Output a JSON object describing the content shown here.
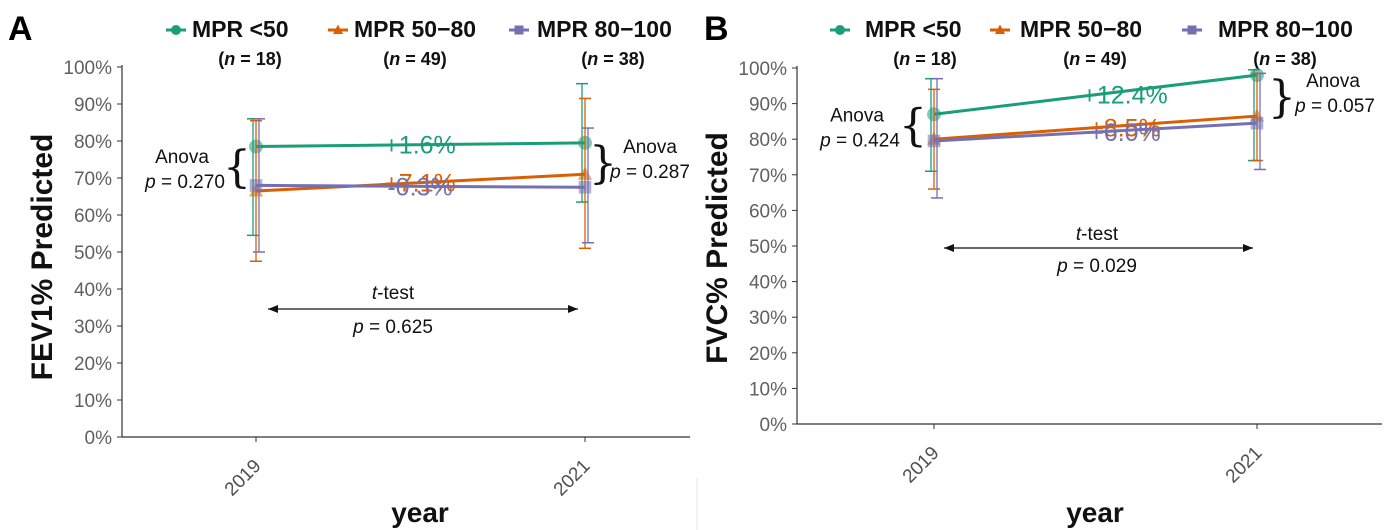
{
  "colors": {
    "mpr_lt_50": "#1b9e77",
    "mpr_50_80": "#d95f02",
    "mpr_80_100": "#7570b3",
    "axis": "#333333",
    "tick_text": "#606060"
  },
  "legend": {
    "items": [
      {
        "label": "MPR <50",
        "n": "(n = 18)",
        "marker": "circle"
      },
      {
        "label": "MPR 50−80",
        "n": "(n = 49)",
        "marker": "triangle"
      },
      {
        "label": "MPR 80−100",
        "n": "(n = 38)",
        "marker": "square"
      }
    ]
  },
  "chart_data": [
    {
      "panel": "A",
      "type": "line",
      "ylabel": "FEV1% Predicted",
      "xlabel": "year",
      "categories": [
        "2019",
        "2021"
      ],
      "ylim": [
        0,
        100
      ],
      "yticks": [
        "0%",
        "10%",
        "20%",
        "30%",
        "40%",
        "50%",
        "60%",
        "70%",
        "80%",
        "90%",
        "100%"
      ],
      "grid": false,
      "series": [
        {
          "name": "MPR <50",
          "values": [
            78.5,
            79.5
          ],
          "error_low": [
            54.5,
            63.5
          ],
          "error_high": [
            86,
            95.5
          ],
          "change_label": "+1.6%"
        },
        {
          "name": "MPR 50−80",
          "values": [
            66.5,
            71
          ],
          "error_low": [
            47.5,
            51
          ],
          "error_high": [
            85.5,
            91.5
          ],
          "change_label": "+7.1%"
        },
        {
          "name": "MPR 80−100",
          "values": [
            68,
            67.5
          ],
          "error_low": [
            50,
            52.5
          ],
          "error_high": [
            86,
            83.5
          ],
          "change_label": "-0.3%"
        }
      ],
      "annotations": {
        "anova_left": {
          "label": "Anova",
          "p": "0.270"
        },
        "anova_right": {
          "label": "Anova",
          "p": "0.287"
        },
        "ttest": {
          "label": "t",
          "suffix": "-test",
          "p": "0.625"
        }
      }
    },
    {
      "panel": "B",
      "type": "line",
      "ylabel": "FVC% Predicted",
      "xlabel": "year",
      "categories": [
        "2019",
        "2021"
      ],
      "ylim": [
        0,
        100
      ],
      "yticks": [
        "0%",
        "10%",
        "20%",
        "30%",
        "40%",
        "50%",
        "60%",
        "70%",
        "80%",
        "90%",
        "100%"
      ],
      "grid": false,
      "series": [
        {
          "name": "MPR <50",
          "values": [
            87,
            98
          ],
          "error_low": [
            71,
            74
          ],
          "error_high": [
            97,
            99.5
          ],
          "change_label": "+12.4%"
        },
        {
          "name": "MPR 50−80",
          "values": [
            80,
            86.5
          ],
          "error_low": [
            66,
            74
          ],
          "error_high": [
            94,
            98.5
          ],
          "change_label": "+8.5%"
        },
        {
          "name": "MPR 80−100",
          "values": [
            79.5,
            84.5
          ],
          "error_low": [
            63.5,
            71.5
          ],
          "error_high": [
            97,
            98.5
          ],
          "change_label": "+6.0%"
        }
      ],
      "annotations": {
        "anova_left": {
          "label": "Anova",
          "p": "0.424"
        },
        "anova_right": {
          "label": "Anova",
          "p": "0.057"
        },
        "ttest": {
          "label": "t",
          "suffix": "-test",
          "p": "0.029"
        }
      }
    }
  ]
}
